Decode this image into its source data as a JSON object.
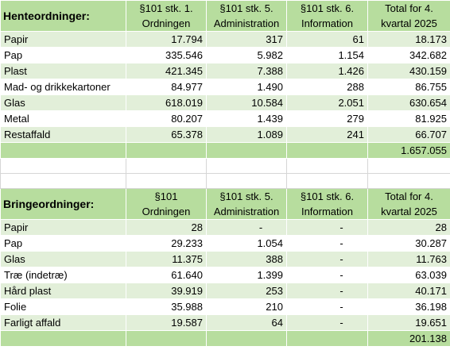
{
  "henteordninger": {
    "title": "Henteordninger:",
    "headers": [
      [
        "§101 stk. 1.",
        "Ordningen"
      ],
      [
        "§101 stk. 5.",
        "Administration"
      ],
      [
        "§101 stk. 6.",
        "Information"
      ],
      [
        "Total for 4.",
        "kvartal 2025"
      ]
    ],
    "rows": [
      {
        "label": "Papir",
        "values": [
          "17.794",
          "317",
          "61",
          "18.173"
        ]
      },
      {
        "label": "Pap",
        "values": [
          "335.546",
          "5.982",
          "1.154",
          "342.682"
        ]
      },
      {
        "label": "Plast",
        "values": [
          "421.345",
          "7.388",
          "1.426",
          "430.159"
        ]
      },
      {
        "label": "Mad- og drikkekartoner",
        "values": [
          "84.977",
          "1.490",
          "288",
          "86.755"
        ]
      },
      {
        "label": "Glas",
        "values": [
          "618.019",
          "10.584",
          "2.051",
          "630.654"
        ]
      },
      {
        "label": "Metal",
        "values": [
          "80.207",
          "1.439",
          "279",
          "81.925"
        ]
      },
      {
        "label": "Restaffald",
        "values": [
          "65.378",
          "1.089",
          "241",
          "66.707"
        ]
      }
    ],
    "total": "1.657.055"
  },
  "bringeordninger": {
    "title": "Bringeordninger:",
    "headers": [
      [
        "§101 Ordningen",
        ""
      ],
      [
        "§101 stk. 5.",
        "Administration"
      ],
      [
        "§101 stk. 6.",
        "Information"
      ],
      [
        "Total for 4.",
        "kvartal 2025"
      ]
    ],
    "rows": [
      {
        "label": "Papir",
        "values": [
          "28",
          "-",
          "-",
          "28"
        ]
      },
      {
        "label": "Pap",
        "values": [
          "29.233",
          "1.054",
          "-",
          "30.287"
        ]
      },
      {
        "label": "Glas",
        "values": [
          "11.375",
          "388",
          "-",
          "11.763"
        ]
      },
      {
        "label": "Træ (indetræ)",
        "values": [
          "61.640",
          "1.399",
          "-",
          "63.039"
        ]
      },
      {
        "label": "Hård plast",
        "values": [
          "39.919",
          "253",
          "-",
          "40.171"
        ]
      },
      {
        "label": "Folie",
        "values": [
          "35.988",
          "210",
          "-",
          "36.198"
        ]
      },
      {
        "label": "Farligt affald",
        "values": [
          "19.587",
          "64",
          "-",
          "19.651"
        ]
      }
    ],
    "total": "201.138"
  },
  "colors": {
    "header_green": "#b7dd9e",
    "row_light_green": "#e2efd9",
    "row_white": "#ffffff"
  }
}
